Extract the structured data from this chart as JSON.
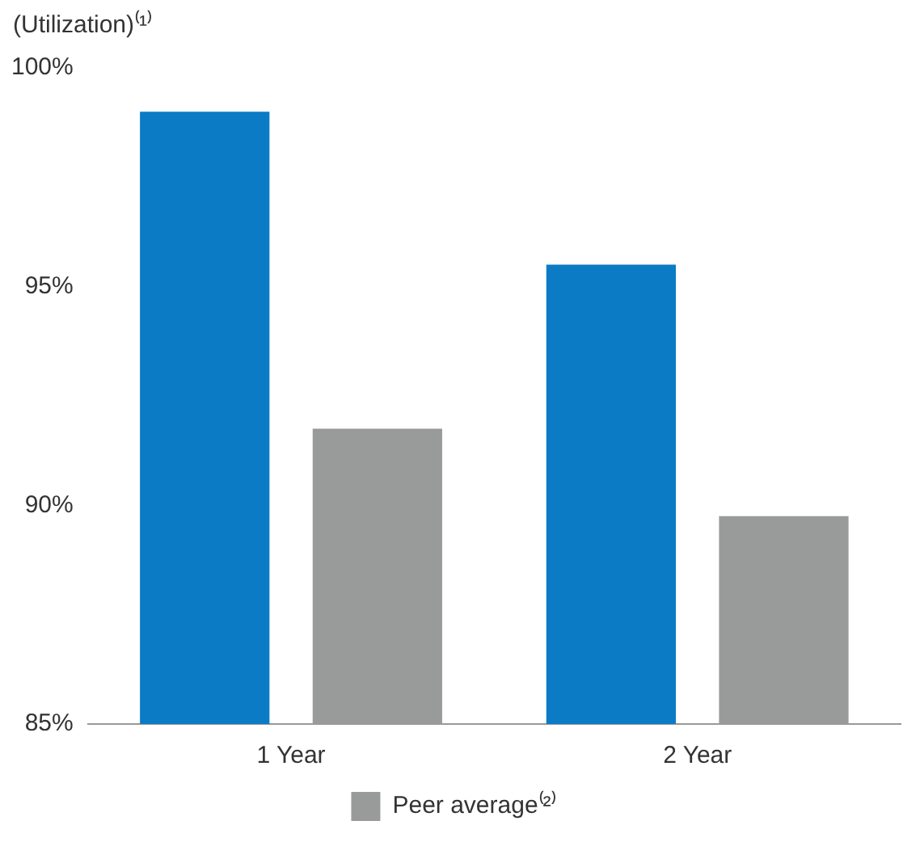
{
  "chart_data": {
    "type": "bar",
    "ylabel": "(Utilization)⁽¹⁾",
    "categories": [
      "1 Year",
      "2 Year"
    ],
    "series": [
      {
        "color": "#0a7bc4",
        "values": [
          99.0,
          95.5
        ]
      },
      {
        "name": "Peer average⁽²⁾",
        "color": "#999b9a",
        "values": [
          91.75,
          89.75
        ]
      }
    ],
    "ylim": [
      85,
      100
    ],
    "yticks": [
      {
        "value": 85,
        "label": "85%"
      },
      {
        "value": 90,
        "label": "90%"
      },
      {
        "value": 95,
        "label": "95%"
      },
      {
        "value": 100,
        "label": "100%"
      }
    ],
    "grid": false,
    "legend": "bottom"
  }
}
